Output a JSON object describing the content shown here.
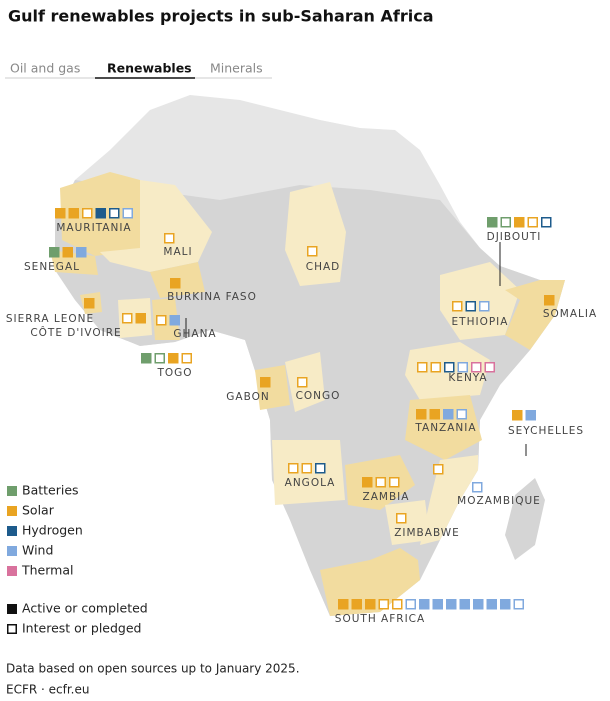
{
  "title": "Gulf renewables projects in sub-Saharan Africa",
  "tabs": [
    "Oil and gas",
    "Renewables",
    "Minerals"
  ],
  "selected_tab": "Renewables",
  "legend": {
    "technologies": [
      {
        "name": "Batteries",
        "color": "#6f9e6c"
      },
      {
        "name": "Solar",
        "color": "#e9a422"
      },
      {
        "name": "Hydrogen",
        "color": "#1d5b8c"
      },
      {
        "name": "Wind",
        "color": "#80a9de"
      },
      {
        "name": "Thermal",
        "color": "#d9729d"
      }
    ],
    "status": [
      "Active or completed",
      "Interest or pledged"
    ]
  },
  "countries": [
    {
      "name": "MAURITANIA",
      "projects": [
        {
          "tech": "Solar",
          "active": true
        },
        {
          "tech": "Solar",
          "active": true
        },
        {
          "tech": "Solar",
          "active": false
        },
        {
          "tech": "Hydrogen",
          "active": true
        },
        {
          "tech": "Hydrogen",
          "active": false
        },
        {
          "tech": "Wind",
          "active": false
        }
      ]
    },
    {
      "name": "SENEGAL",
      "projects": [
        {
          "tech": "Batteries",
          "active": true
        },
        {
          "tech": "Solar",
          "active": true
        },
        {
          "tech": "Wind",
          "active": true
        }
      ]
    },
    {
      "name": "MALI",
      "projects": [
        {
          "tech": "Solar",
          "active": false
        }
      ]
    },
    {
      "name": "BURKINA FASO",
      "projects": [
        {
          "tech": "Solar",
          "active": true
        }
      ]
    },
    {
      "name": "SIERRA LEONE",
      "projects": [
        {
          "tech": "Solar",
          "active": true
        }
      ]
    },
    {
      "name": "CÔTE D'IVOIRE",
      "projects": [
        {
          "tech": "Solar",
          "active": false
        },
        {
          "tech": "Solar",
          "active": true
        }
      ]
    },
    {
      "name": "GHANA",
      "projects": [
        {
          "tech": "Solar",
          "active": false
        },
        {
          "tech": "Wind",
          "active": true
        }
      ]
    },
    {
      "name": "TOGO",
      "projects": [
        {
          "tech": "Batteries",
          "active": true
        },
        {
          "tech": "Batteries",
          "active": false
        },
        {
          "tech": "Solar",
          "active": true
        },
        {
          "tech": "Solar",
          "active": false
        }
      ]
    },
    {
      "name": "CHAD",
      "projects": [
        {
          "tech": "Solar",
          "active": false
        }
      ]
    },
    {
      "name": "DJIBOUTI",
      "projects": [
        {
          "tech": "Batteries",
          "active": true
        },
        {
          "tech": "Batteries",
          "active": false
        },
        {
          "tech": "Solar",
          "active": true
        },
        {
          "tech": "Solar",
          "active": false
        },
        {
          "tech": "Hydrogen",
          "active": false
        }
      ]
    },
    {
      "name": "ETHIOPIA",
      "projects": [
        {
          "tech": "Solar",
          "active": false
        },
        {
          "tech": "Hydrogen",
          "active": false
        },
        {
          "tech": "Wind",
          "active": false
        }
      ]
    },
    {
      "name": "SOMALIA",
      "projects": [
        {
          "tech": "Solar",
          "active": true
        }
      ]
    },
    {
      "name": "KENYA",
      "projects": [
        {
          "tech": "Solar",
          "active": false
        },
        {
          "tech": "Solar",
          "active": false
        },
        {
          "tech": "Hydrogen",
          "active": false
        },
        {
          "tech": "Wind",
          "active": false
        },
        {
          "tech": "Thermal",
          "active": false
        },
        {
          "tech": "Thermal",
          "active": false
        }
      ]
    },
    {
      "name": "GABON",
      "projects": [
        {
          "tech": "Solar",
          "active": true
        }
      ]
    },
    {
      "name": "CONGO",
      "projects": [
        {
          "tech": "Solar",
          "active": false
        }
      ]
    },
    {
      "name": "TANZANIA",
      "projects": [
        {
          "tech": "Solar",
          "active": true
        },
        {
          "tech": "Solar",
          "active": true
        },
        {
          "tech": "Wind",
          "active": true
        },
        {
          "tech": "Wind",
          "active": false
        }
      ]
    },
    {
      "name": "SEYCHELLES",
      "projects": [
        {
          "tech": "Solar",
          "active": true
        },
        {
          "tech": "Wind",
          "active": true
        }
      ]
    },
    {
      "name": "ANGOLA",
      "projects": [
        {
          "tech": "Solar",
          "active": false
        },
        {
          "tech": "Solar",
          "active": false
        },
        {
          "tech": "Hydrogen",
          "active": false
        }
      ]
    },
    {
      "name": "ZAMBIA",
      "projects": [
        {
          "tech": "Solar",
          "active": true
        },
        {
          "tech": "Solar",
          "active": false
        },
        {
          "tech": "Solar",
          "active": false
        }
      ]
    },
    {
      "name": "MOZAMBIQUE",
      "projects": [
        {
          "tech": "Wind",
          "active": false
        }
      ]
    },
    {
      "name": "ZIMBABWE",
      "projects": [
        {
          "tech": "Solar",
          "active": false
        }
      ]
    },
    {
      "name": "SOUTH AFRICA",
      "projects": [
        {
          "tech": "Solar",
          "active": true
        },
        {
          "tech": "Solar",
          "active": true
        },
        {
          "tech": "Solar",
          "active": true
        },
        {
          "tech": "Solar",
          "active": false
        },
        {
          "tech": "Solar",
          "active": false
        },
        {
          "tech": "Wind",
          "active": false
        },
        {
          "tech": "Wind",
          "active": true
        },
        {
          "tech": "Wind",
          "active": true
        },
        {
          "tech": "Wind",
          "active": true
        },
        {
          "tech": "Wind",
          "active": true
        },
        {
          "tech": "Wind",
          "active": true
        },
        {
          "tech": "Wind",
          "active": true
        },
        {
          "tech": "Wind",
          "active": true
        },
        {
          "tech": "Wind",
          "active": false
        }
      ]
    },
    {
      "name": null,
      "projects": [
        {
          "tech": "Solar",
          "active": false
        }
      ]
    }
  ],
  "note": "Data based on open sources up to January 2025.",
  "source": "ECFR · ecfr.eu"
}
